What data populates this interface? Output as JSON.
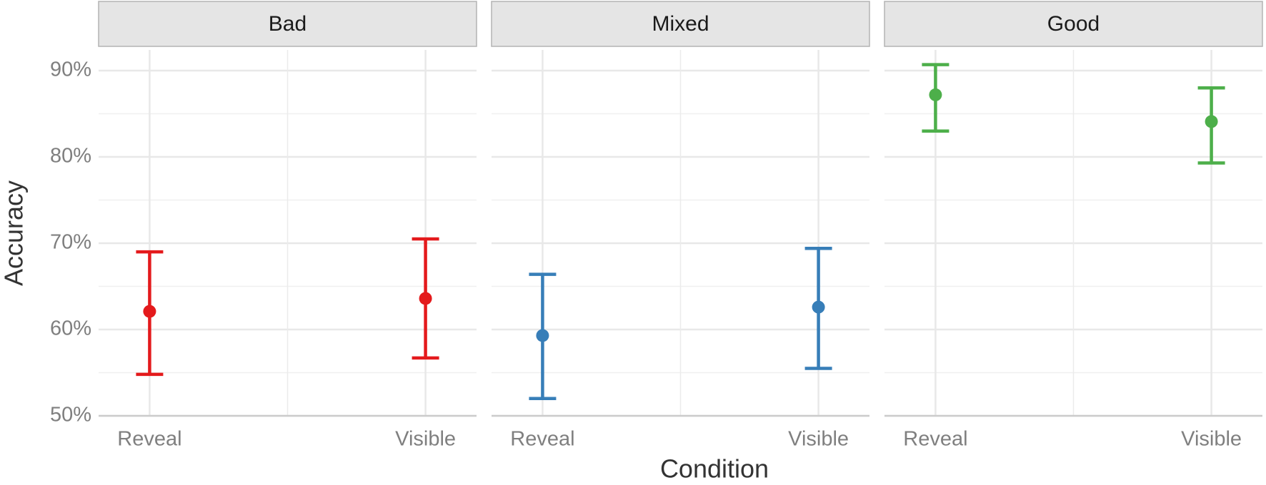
{
  "chart_data": {
    "type": "errorbar",
    "x_label": "Condition",
    "y_label": "Accuracy",
    "categories": [
      "Reveal",
      "Visible"
    ],
    "ylim": [
      50,
      92.4
    ],
    "yticks": [
      {
        "value": 50,
        "label": "50%"
      },
      {
        "value": 60,
        "label": "60%"
      },
      {
        "value": 70,
        "label": "70%"
      },
      {
        "value": 80,
        "label": "80%"
      },
      {
        "value": 90,
        "label": "90%"
      }
    ],
    "grid": true,
    "facets": [
      {
        "title": "Bad",
        "color": "#e41a1c",
        "values": [
          62.1,
          63.6
        ],
        "lower": [
          54.8,
          56.7
        ],
        "upper": [
          69.0,
          70.5
        ]
      },
      {
        "title": "Mixed",
        "color": "#377eb8",
        "values": [
          59.3,
          62.6
        ],
        "lower": [
          52.0,
          55.5
        ],
        "upper": [
          66.4,
          69.4
        ]
      },
      {
        "title": "Good",
        "color": "#4daf4a",
        "values": [
          87.2,
          84.1
        ],
        "lower": [
          83.0,
          79.3
        ],
        "upper": [
          90.7,
          88.0
        ]
      }
    ]
  }
}
